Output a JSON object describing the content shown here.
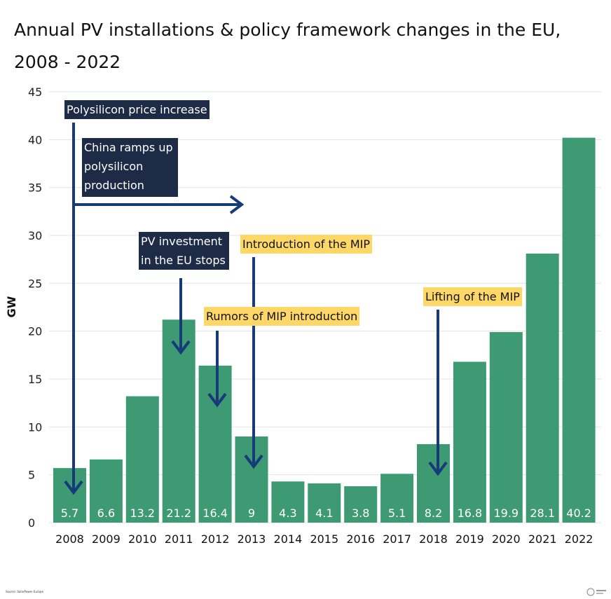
{
  "title": "Annual PV installations & policy framework changes in the EU, 2008 - 2022",
  "source": "Source: SolarPower Europe",
  "colors": {
    "bar": "#3d9a73",
    "annotation_dark": "#1e2b47",
    "annotation_yellow": "#fdd867",
    "arrow": "#173a78"
  },
  "annotations": [
    {
      "text": "Polysilicon price increase",
      "style": "dark",
      "year": "2008"
    },
    {
      "text": "China ramps up polysilicon production",
      "style": "dark"
    },
    {
      "text": "PV investment in the EU stops",
      "style": "dark",
      "year": "2011"
    },
    {
      "text": "Introduction of the MIP",
      "style": "yellow",
      "year": "2013"
    },
    {
      "text": "Rumors of MIP introduction",
      "style": "yellow",
      "year": "2012"
    },
    {
      "text": "Lifting of the MIP",
      "style": "yellow",
      "year": "2018"
    }
  ],
  "chart_data": {
    "type": "bar",
    "title": "Annual PV installations & policy framework changes in the EU, 2008 - 2022",
    "xlabel": "",
    "ylabel": "GW",
    "ylim": [
      0,
      45
    ],
    "yticks": [
      0,
      5,
      10,
      15,
      20,
      25,
      30,
      35,
      40,
      45
    ],
    "grid": true,
    "categories": [
      "2008",
      "2009",
      "2010",
      "2011",
      "2012",
      "2013",
      "2014",
      "2015",
      "2016",
      "2017",
      "2018",
      "2019",
      "2020",
      "2021",
      "2022"
    ],
    "values": [
      5.7,
      6.6,
      13.2,
      21.2,
      16.4,
      9,
      4.3,
      4.1,
      3.8,
      5.1,
      8.2,
      16.8,
      19.9,
      28.1,
      40.2
    ]
  }
}
